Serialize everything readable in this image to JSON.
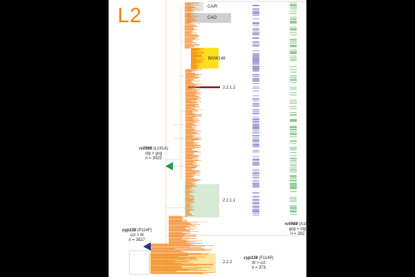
{
  "panel_title": "L2",
  "clades": [
    {
      "label": "CA/R"
    },
    {
      "label": "CAO"
    },
    {
      "label": "B0/W148"
    },
    {
      "label": "2.2.1.2"
    },
    {
      "label": "2.2.1.1"
    },
    {
      "label": "2.2.2"
    }
  ],
  "mutations": {
    "rv0988_l191a": {
      "gene": "rv0988",
      "change": "(L191A)",
      "codon": "ctg > gcg",
      "n_prefix": "n",
      "n_value": "= 3025"
    },
    "cyp138_p114f": {
      "gene": "cyp138",
      "change": "(P114F)",
      "codon": "cct > ttt",
      "n_prefix": "n",
      "n_value": "= 3527"
    },
    "rv0988_a191": {
      "gene": "rv0988",
      "change": "(A191",
      "codon": "gcg > ctg",
      "n_prefix": "n",
      "n_value": "= 282"
    },
    "cyp138_f114p": {
      "gene": "cyp138",
      "change": "(F114P)",
      "codon": "ttt > cct",
      "n_prefix": "n",
      "n_value": "= 373"
    }
  },
  "colors": {
    "tree": "#f07d12",
    "title": "#f07d12",
    "rv0988_track": "#5b5bb8",
    "cyp138_track": "#3ea33e",
    "marker_rv0988": "#1e9e4a",
    "marker_cyp138": "#2b2e8c",
    "clade_gray": "#cfcfcf",
    "clade_yellow": "#fbe021",
    "clade_green": "#d6ead6",
    "clade_light_yellow": "#fde6a0",
    "clade_2212_bar": "#7b1010"
  }
}
